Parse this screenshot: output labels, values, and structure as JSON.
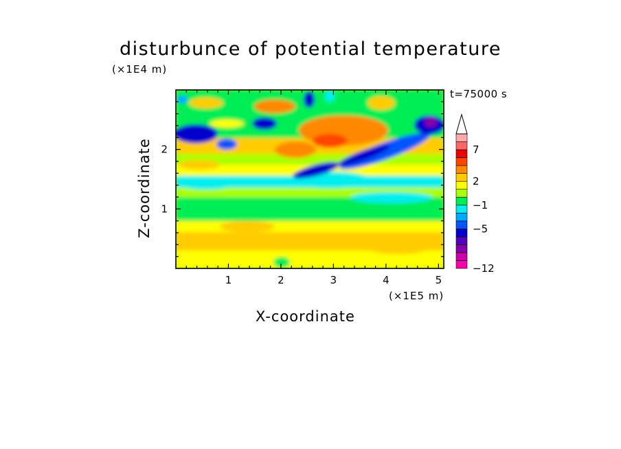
{
  "chart_data": {
    "type": "heatmap",
    "title": "disturbunce of potential temperature",
    "time_label": "t=75000 s",
    "xlabel": "X-coordinate",
    "ylabel": "Z-coordinate",
    "x_scale_label": "(×1E5 m)",
    "y_scale_label": "(×1E4 m)",
    "xlim": [
      0,
      5.1
    ],
    "ylim": [
      0,
      3.0
    ],
    "x_ticks": [
      "1",
      "2",
      "3",
      "4",
      "5"
    ],
    "y_ticks": [
      "1",
      "2"
    ],
    "colorbar": {
      "labels": [
        "7",
        "2",
        "−1",
        "−5",
        "−12"
      ],
      "extend_arrow": "top",
      "colors": [
        "#ff00aa",
        "#cc00aa",
        "#8800aa",
        "#5500bb",
        "#0000cc",
        "#0055ff",
        "#00aaff",
        "#00eeee",
        "#00ee55",
        "#aaff00",
        "#ffff00",
        "#ffcc00",
        "#ff8800",
        "#ff4400",
        "#ee0000",
        "#ff6666",
        "#ffaaaa"
      ]
    },
    "field_bands": [
      {
        "z_from": 0.0,
        "z_to": 0.45,
        "level": "yellow-orange"
      },
      {
        "z_from": 0.45,
        "z_to": 0.75,
        "level": "orange"
      },
      {
        "z_from": 0.75,
        "z_to": 1.05,
        "level": "green"
      },
      {
        "z_from": 1.05,
        "z_to": 1.4,
        "level": "cyan-green"
      },
      {
        "z_from": 1.4,
        "z_to": 2.0,
        "level": "yellow-green"
      },
      {
        "z_from": 2.0,
        "z_to": 2.6,
        "level": "blue-orange"
      },
      {
        "z_from": 2.6,
        "z_to": 3.0,
        "level": "green-orange"
      }
    ]
  }
}
